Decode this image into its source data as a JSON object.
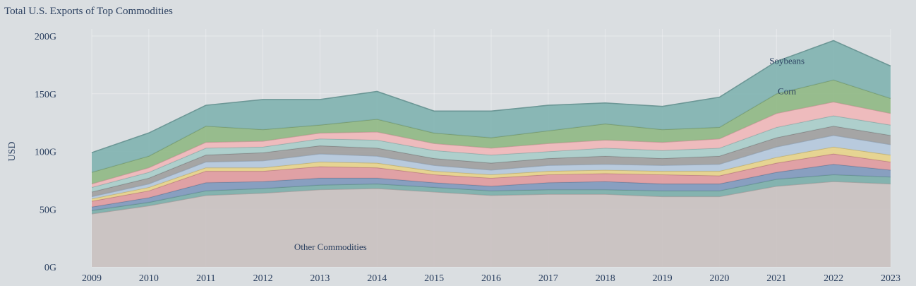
{
  "chart_data": {
    "type": "area",
    "stacked": true,
    "title": "Total U.S. Exports of Top Commodities",
    "xlabel": "",
    "ylabel": "USD",
    "ylim": [
      0,
      200
    ],
    "grid": true,
    "legend": "none",
    "y_ticks": [
      0,
      50,
      100,
      150,
      200
    ],
    "y_tick_labels": [
      "0G",
      "50G",
      "100G",
      "150G",
      "200G"
    ],
    "x": [
      "2009",
      "2010",
      "2011",
      "2012",
      "2013",
      "2014",
      "2015",
      "2016",
      "2017",
      "2018",
      "2019",
      "2020",
      "2021",
      "2022",
      "2023"
    ],
    "series": [
      {
        "name": "Other Commodities",
        "color": "#c9c1c0",
        "values": [
          46,
          53,
          62,
          64,
          67,
          68,
          65,
          62,
          63,
          63,
          61,
          61,
          70,
          74,
          72
        ]
      },
      {
        "color": "#7aaeaa",
        "values": [
          3,
          3,
          4,
          4,
          4,
          4,
          4,
          4,
          4,
          4,
          5,
          5,
          6,
          6,
          6
        ]
      },
      {
        "color": "#7e98bc",
        "values": [
          3,
          4,
          7,
          6,
          6,
          5,
          4,
          4,
          6,
          7,
          6,
          6,
          6,
          9,
          6
        ]
      },
      {
        "color": "#e09a9e",
        "values": [
          5,
          6,
          10,
          9,
          10,
          9,
          7,
          7,
          7,
          7,
          8,
          7,
          8,
          9,
          7
        ]
      },
      {
        "color": "#e7d389",
        "values": [
          2,
          3,
          3,
          3,
          4,
          4,
          3,
          3,
          3,
          3,
          3,
          4,
          5,
          6,
          6
        ]
      },
      {
        "color": "#b4c8dd",
        "values": [
          2,
          3,
          5,
          6,
          7,
          6,
          5,
          4,
          5,
          5,
          5,
          6,
          9,
          10,
          9
        ]
      },
      {
        "color": "#9e9e9e",
        "values": [
          4,
          5,
          6,
          7,
          7,
          7,
          6,
          6,
          6,
          7,
          6,
          7,
          8,
          8,
          8
        ]
      },
      {
        "color": "#a9cdca",
        "values": [
          4,
          5,
          6,
          5,
          6,
          7,
          7,
          7,
          6,
          7,
          7,
          7,
          9,
          9,
          9
        ]
      },
      {
        "color": "#f0b7b9",
        "values": [
          3,
          4,
          5,
          5,
          5,
          7,
          6,
          6,
          7,
          7,
          7,
          8,
          12,
          12,
          10
        ]
      },
      {
        "name": "Corn",
        "color": "#8fb884",
        "values": [
          10,
          10,
          14,
          10,
          7,
          11,
          9,
          9,
          11,
          14,
          11,
          10,
          17,
          19,
          13
        ]
      },
      {
        "name": "Soybeans",
        "color": "#7fb2b0",
        "values": [
          17,
          20,
          18,
          26,
          22,
          24,
          19,
          23,
          22,
          18,
          20,
          26,
          28,
          34,
          28
        ]
      }
    ],
    "annotations": [
      {
        "text": "Other Commodities",
        "series": "Other Commodities"
      },
      {
        "text": "Corn",
        "series": "Corn"
      },
      {
        "text": "Soybeans",
        "series": "Soybeans"
      }
    ]
  }
}
